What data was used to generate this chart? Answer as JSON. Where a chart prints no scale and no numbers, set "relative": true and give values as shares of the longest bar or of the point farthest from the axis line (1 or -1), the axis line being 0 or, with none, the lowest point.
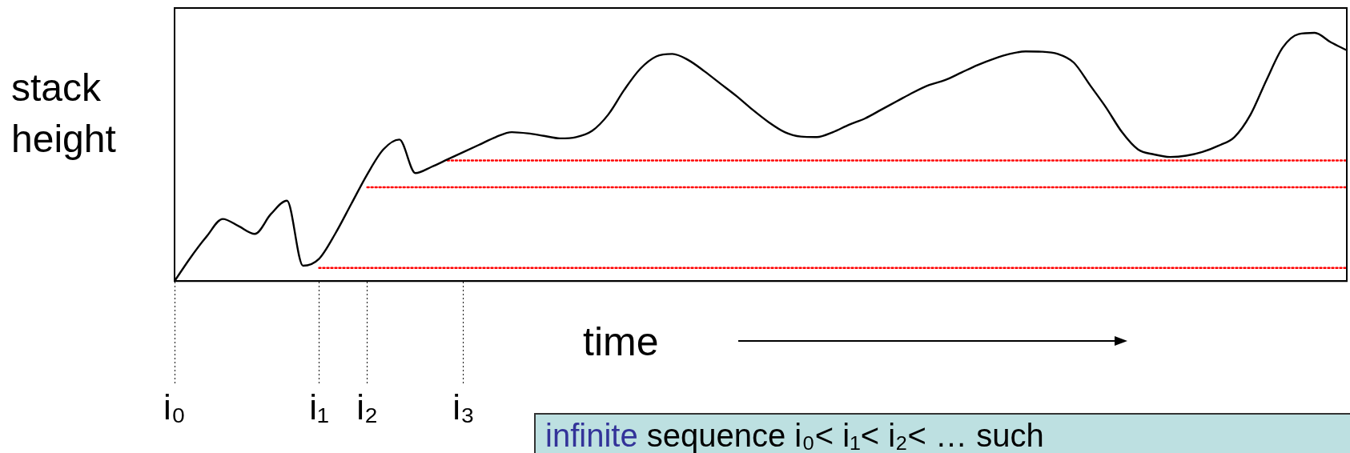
{
  "chart_data": {
    "type": "line",
    "relative": true,
    "ylabel": "stack height",
    "xlabel": "time",
    "categories": [
      "i₀",
      null,
      null,
      null,
      null,
      null,
      null,
      null,
      null,
      "i₁",
      null,
      null,
      "i₂",
      null,
      null,
      null,
      null,
      null,
      "i₃",
      null,
      null,
      null,
      null,
      null,
      null,
      null,
      null,
      null,
      null,
      null,
      null,
      null,
      null,
      null,
      null,
      null,
      null,
      null,
      null,
      null,
      null,
      null,
      null,
      null,
      null,
      null,
      null,
      null,
      null,
      null,
      null,
      null,
      null,
      null,
      null,
      null,
      null,
      null,
      null,
      null,
      null,
      null,
      null,
      null,
      null,
      null,
      null,
      null,
      null,
      null,
      null,
      null,
      null,
      null
    ],
    "series": [
      {
        "color": "#000000",
        "line_style": "solid",
        "values": [
          0,
          0.095,
          0.18,
          0.25,
          0.221,
          0.19,
          0.27,
          0.324,
          0.062,
          0.09,
          0.19,
          0.31,
          0.43,
          0.53,
          0.57,
          0.435,
          0.46,
          0.49,
          0.52,
          0.55,
          0.58,
          0.6,
          0.595,
          0.585,
          0.575,
          0.58,
          0.605,
          0.67,
          0.77,
          0.855,
          0.905,
          0.915,
          0.89,
          0.845,
          0.795,
          0.745,
          0.69,
          0.64,
          0.6,
          0.582,
          0.58,
          0.6,
          0.63,
          0.655,
          0.69,
          0.725,
          0.76,
          0.79,
          0.81,
          0.84,
          0.87,
          0.895,
          0.915,
          0.925,
          0.924,
          0.915,
          0.88,
          0.79,
          0.7,
          0.6,
          0.53,
          0.51,
          0.5,
          0.505,
          0.52,
          0.545,
          0.58,
          0.67,
          0.81,
          0.94,
          0.995,
          1,
          0.962,
          0.93
        ]
      },
      {
        "color": "#ff0000",
        "line_style": "dotted",
        "values": [
          null,
          null,
          null,
          null,
          null,
          null,
          null,
          null,
          null,
          0.053,
          0.053,
          0.053,
          0.053,
          0.053,
          0.053,
          0.053,
          0.053,
          0.053,
          0.053,
          0.053,
          0.053,
          0.053,
          0.053,
          0.053,
          0.053,
          0.053,
          0.053,
          0.053,
          0.053,
          0.053,
          0.053,
          0.053,
          0.053,
          0.053,
          0.053,
          0.053,
          0.053,
          0.053,
          0.053,
          0.053,
          0.053,
          0.053,
          0.053,
          0.053,
          0.053,
          0.053,
          0.053,
          0.053,
          0.053,
          0.053,
          0.053,
          0.053,
          0.053,
          0.053,
          0.053,
          0.053,
          0.053,
          0.053,
          0.053,
          0.053,
          0.053,
          0.053,
          0.053,
          0.053,
          0.053,
          0.053,
          0.053,
          0.053,
          0.053,
          0.053,
          0.053,
          0.053,
          0.053,
          0.053
        ]
      },
      {
        "color": "#ff0000",
        "line_style": "dotted",
        "values": [
          null,
          null,
          null,
          null,
          null,
          null,
          null,
          null,
          null,
          null,
          null,
          null,
          0.378,
          0.378,
          0.378,
          0.378,
          0.378,
          0.378,
          0.378,
          0.378,
          0.378,
          0.378,
          0.378,
          0.378,
          0.378,
          0.378,
          0.378,
          0.378,
          0.378,
          0.378,
          0.378,
          0.378,
          0.378,
          0.378,
          0.378,
          0.378,
          0.378,
          0.378,
          0.378,
          0.378,
          0.378,
          0.378,
          0.378,
          0.378,
          0.378,
          0.378,
          0.378,
          0.378,
          0.378,
          0.378,
          0.378,
          0.378,
          0.378,
          0.378,
          0.378,
          0.378,
          0.378,
          0.378,
          0.378,
          0.378,
          0.378,
          0.378,
          0.378,
          0.378,
          0.378,
          0.378,
          0.378,
          0.378,
          0.378,
          0.378,
          0.378,
          0.378,
          0.378,
          0.378
        ]
      },
      {
        "color": "#ff0000",
        "line_style": "dotted",
        "values": [
          null,
          null,
          null,
          null,
          null,
          null,
          null,
          null,
          null,
          null,
          null,
          null,
          null,
          null,
          null,
          null,
          null,
          0.486,
          0.486,
          0.486,
          0.486,
          0.486,
          0.486,
          0.486,
          0.486,
          0.486,
          0.486,
          0.486,
          0.486,
          0.486,
          0.486,
          0.486,
          0.486,
          0.486,
          0.486,
          0.486,
          0.486,
          0.486,
          0.486,
          0.486,
          0.486,
          0.486,
          0.486,
          0.486,
          0.486,
          0.486,
          0.486,
          0.486,
          0.486,
          0.486,
          0.486,
          0.486,
          0.486,
          0.486,
          0.486,
          0.486,
          0.486,
          0.486,
          0.486,
          0.486,
          0.486,
          0.486,
          0.486,
          0.486,
          0.486,
          0.486,
          0.486,
          0.486,
          0.486,
          0.486,
          0.486,
          0.486,
          0.486,
          0.486
        ]
      }
    ],
    "marker": "none",
    "legend": false,
    "grid": false,
    "annotations": [
      "infinite sequence i₀< i₁< i₂< … such"
    ]
  }
}
